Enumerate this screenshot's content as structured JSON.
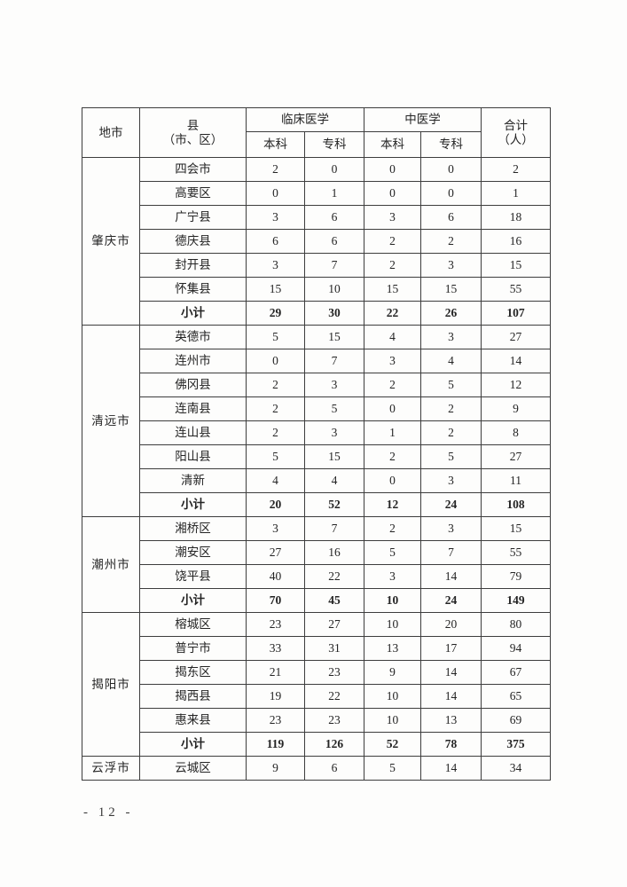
{
  "page": {
    "footer_page_number": "- 12 -"
  },
  "table": {
    "header": {
      "city": "地市",
      "county_line1": "县",
      "county_line2": "（市、区）",
      "clinical_medicine": "临床医学",
      "tcm": "中医学",
      "total_line1": "合计",
      "total_line2": "（人）",
      "undergrad": "本科",
      "college": "专科"
    },
    "groups": [
      {
        "city": "肇庆市",
        "rows": [
          {
            "county": "四会市",
            "values": [
              "2",
              "0",
              "0",
              "0",
              "2"
            ],
            "bold": false
          },
          {
            "county": "高要区",
            "values": [
              "0",
              "1",
              "0",
              "0",
              "1"
            ],
            "bold": false
          },
          {
            "county": "广宁县",
            "values": [
              "3",
              "6",
              "3",
              "6",
              "18"
            ],
            "bold": false
          },
          {
            "county": "德庆县",
            "values": [
              "6",
              "6",
              "2",
              "2",
              "16"
            ],
            "bold": false
          },
          {
            "county": "封开县",
            "values": [
              "3",
              "7",
              "2",
              "3",
              "15"
            ],
            "bold": false
          },
          {
            "county": "怀集县",
            "values": [
              "15",
              "10",
              "15",
              "15",
              "55"
            ],
            "bold": false
          },
          {
            "county": "小计",
            "values": [
              "29",
              "30",
              "22",
              "26",
              "107"
            ],
            "bold": true
          }
        ]
      },
      {
        "city": "清远市",
        "rows": [
          {
            "county": "英德市",
            "values": [
              "5",
              "15",
              "4",
              "3",
              "27"
            ],
            "bold": false
          },
          {
            "county": "连州市",
            "values": [
              "0",
              "7",
              "3",
              "4",
              "14"
            ],
            "bold": false
          },
          {
            "county": "佛冈县",
            "values": [
              "2",
              "3",
              "2",
              "5",
              "12"
            ],
            "bold": false
          },
          {
            "county": "连南县",
            "values": [
              "2",
              "5",
              "0",
              "2",
              "9"
            ],
            "bold": false
          },
          {
            "county": "连山县",
            "values": [
              "2",
              "3",
              "1",
              "2",
              "8"
            ],
            "bold": false
          },
          {
            "county": "阳山县",
            "values": [
              "5",
              "15",
              "2",
              "5",
              "27"
            ],
            "bold": false
          },
          {
            "county": "清新",
            "values": [
              "4",
              "4",
              "0",
              "3",
              "11"
            ],
            "bold": false
          },
          {
            "county": "小计",
            "values": [
              "20",
              "52",
              "12",
              "24",
              "108"
            ],
            "bold": true
          }
        ]
      },
      {
        "city": "潮州市",
        "rows": [
          {
            "county": "湘桥区",
            "values": [
              "3",
              "7",
              "2",
              "3",
              "15"
            ],
            "bold": false
          },
          {
            "county": "潮安区",
            "values": [
              "27",
              "16",
              "5",
              "7",
              "55"
            ],
            "bold": false
          },
          {
            "county": "饶平县",
            "values": [
              "40",
              "22",
              "3",
              "14",
              "79"
            ],
            "bold": false
          },
          {
            "county": "小计",
            "values": [
              "70",
              "45",
              "10",
              "24",
              "149"
            ],
            "bold": true
          }
        ]
      },
      {
        "city": "揭阳市",
        "rows": [
          {
            "county": "榕城区",
            "values": [
              "23",
              "27",
              "10",
              "20",
              "80"
            ],
            "bold": false
          },
          {
            "county": "普宁市",
            "values": [
              "33",
              "31",
              "13",
              "17",
              "94"
            ],
            "bold": false
          },
          {
            "county": "揭东区",
            "values": [
              "21",
              "23",
              "9",
              "14",
              "67"
            ],
            "bold": false
          },
          {
            "county": "揭西县",
            "values": [
              "19",
              "22",
              "10",
              "14",
              "65"
            ],
            "bold": false
          },
          {
            "county": "惠来县",
            "values": [
              "23",
              "23",
              "10",
              "13",
              "69"
            ],
            "bold": false
          },
          {
            "county": "小计",
            "values": [
              "119",
              "126",
              "52",
              "78",
              "375"
            ],
            "bold": true
          }
        ]
      },
      {
        "city": "云浮市",
        "rows": [
          {
            "county": "云城区",
            "values": [
              "9",
              "6",
              "5",
              "14",
              "34"
            ],
            "bold": false
          }
        ]
      }
    ]
  }
}
